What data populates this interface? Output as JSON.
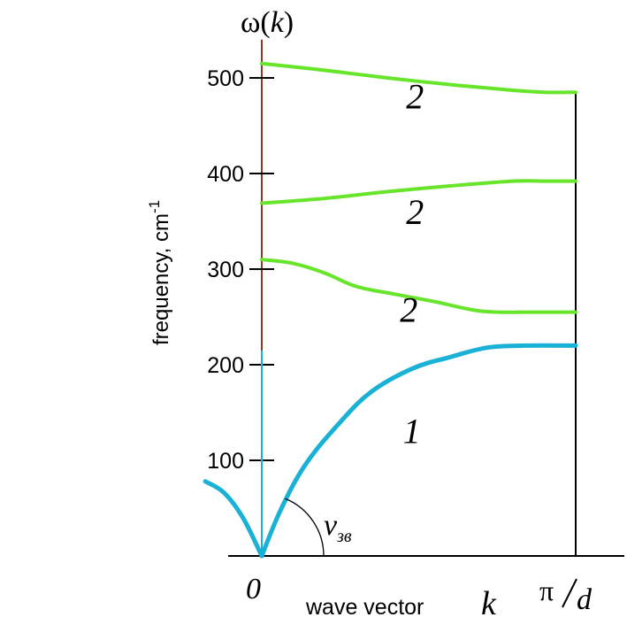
{
  "chart_data": {
    "type": "line",
    "title": "ω(k)",
    "ylabel": "frequency, cm",
    "ylabel_superscript": "-1",
    "xlabel": "wave vector",
    "xlabel_symbol": "k",
    "x_tick_labels": {
      "origin": "0",
      "zone_edge_numerator": "π",
      "zone_edge_denominator": "d"
    },
    "y_ticks": [
      100,
      200,
      300,
      400,
      500
    ],
    "ylim": [
      0,
      520
    ],
    "xlim": [
      -0.18,
      1.15
    ],
    "sound_velocity_label": {
      "main": "v",
      "subscript": "зв"
    },
    "colors": {
      "acoustic": "#1ab1d6",
      "optical": "#66e52a",
      "axis": "#000000",
      "k_zero_line": "#8b3a2a"
    },
    "series": [
      {
        "label": "1",
        "branch": "acoustic",
        "points": [
          [
            -0.18,
            78
          ],
          [
            -0.12,
            66
          ],
          [
            -0.06,
            40
          ],
          [
            0,
            0
          ],
          [
            0.06,
            48
          ],
          [
            0.14,
            96
          ],
          [
            0.25,
            140
          ],
          [
            0.35,
            172
          ],
          [
            0.48,
            196
          ],
          [
            0.6,
            208
          ],
          [
            0.72,
            218
          ],
          [
            0.84,
            220
          ],
          [
            1.0,
            220
          ]
        ]
      },
      {
        "label": "2",
        "branch": "optical",
        "points": [
          [
            0,
            310
          ],
          [
            0.1,
            306
          ],
          [
            0.2,
            296
          ],
          [
            0.3,
            282
          ],
          [
            0.42,
            274
          ],
          [
            0.55,
            266
          ],
          [
            0.7,
            256
          ],
          [
            0.84,
            255
          ],
          [
            1.0,
            255
          ]
        ]
      },
      {
        "label": "2",
        "branch": "optical",
        "points": [
          [
            0,
            369
          ],
          [
            0.2,
            374
          ],
          [
            0.4,
            381
          ],
          [
            0.6,
            387
          ],
          [
            0.8,
            392
          ],
          [
            0.9,
            392
          ],
          [
            1.0,
            392
          ]
        ]
      },
      {
        "label": "2",
        "branch": "optical",
        "points": [
          [
            0,
            515
          ],
          [
            0.2,
            508
          ],
          [
            0.4,
            500
          ],
          [
            0.6,
            493
          ],
          [
            0.8,
            487
          ],
          [
            0.9,
            485
          ],
          [
            1.0,
            485
          ]
        ]
      }
    ],
    "branch_labels": [
      {
        "text": "1",
        "x": 0.45,
        "y": 118
      },
      {
        "text": "2",
        "x": 0.44,
        "y": 245
      },
      {
        "text": "2",
        "x": 0.46,
        "y": 347
      },
      {
        "text": "2",
        "x": 0.46,
        "y": 468
      }
    ]
  }
}
